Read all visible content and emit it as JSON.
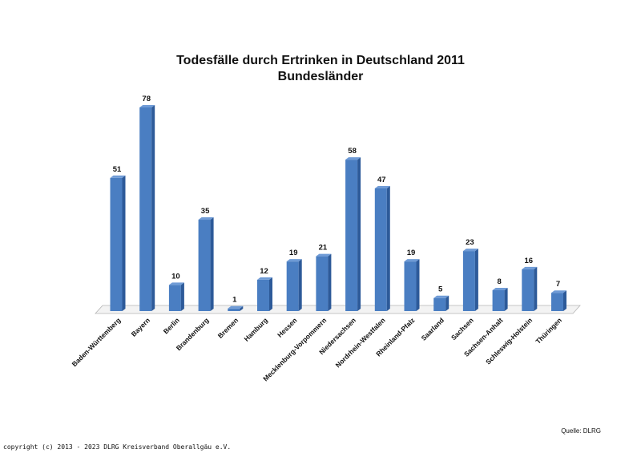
{
  "chart_data": {
    "type": "bar",
    "title": "Todesfälle durch Ertrinken in Deutschland 2011",
    "subtitle": "Bundesländer",
    "categories": [
      "Baden-Württemberg",
      "Bayern",
      "Berlin",
      "Brandenburg",
      "Bremen",
      "Hamburg",
      "Hessen",
      "Mecklenburg-Vorpommern",
      "Niedersachsen",
      "Nordrhein-Westfalen",
      "Rheinland-Pfalz",
      "Saarland",
      "Sachsen",
      "Sachsen-Anhalt",
      "Schleswig-Holstein",
      "Thüringen"
    ],
    "values": [
      51,
      78,
      10,
      35,
      1,
      12,
      19,
      21,
      58,
      47,
      19,
      5,
      23,
      8,
      16,
      7
    ],
    "xlabel": "",
    "ylabel": "",
    "ylim": [
      0,
      78
    ],
    "grid": false,
    "legend": "none",
    "colors": {
      "bar_front": "#4a7ec2",
      "bar_side": "#2d5a99",
      "bar_top": "#6f9bd6",
      "floor": "#f3f3f3",
      "floor_stroke": "#b5b5b5"
    }
  },
  "source": "Quelle: DLRG",
  "copyright": "copyright (c) 2013 - 2023 DLRG Kreisverband Oberallgäu e.V."
}
